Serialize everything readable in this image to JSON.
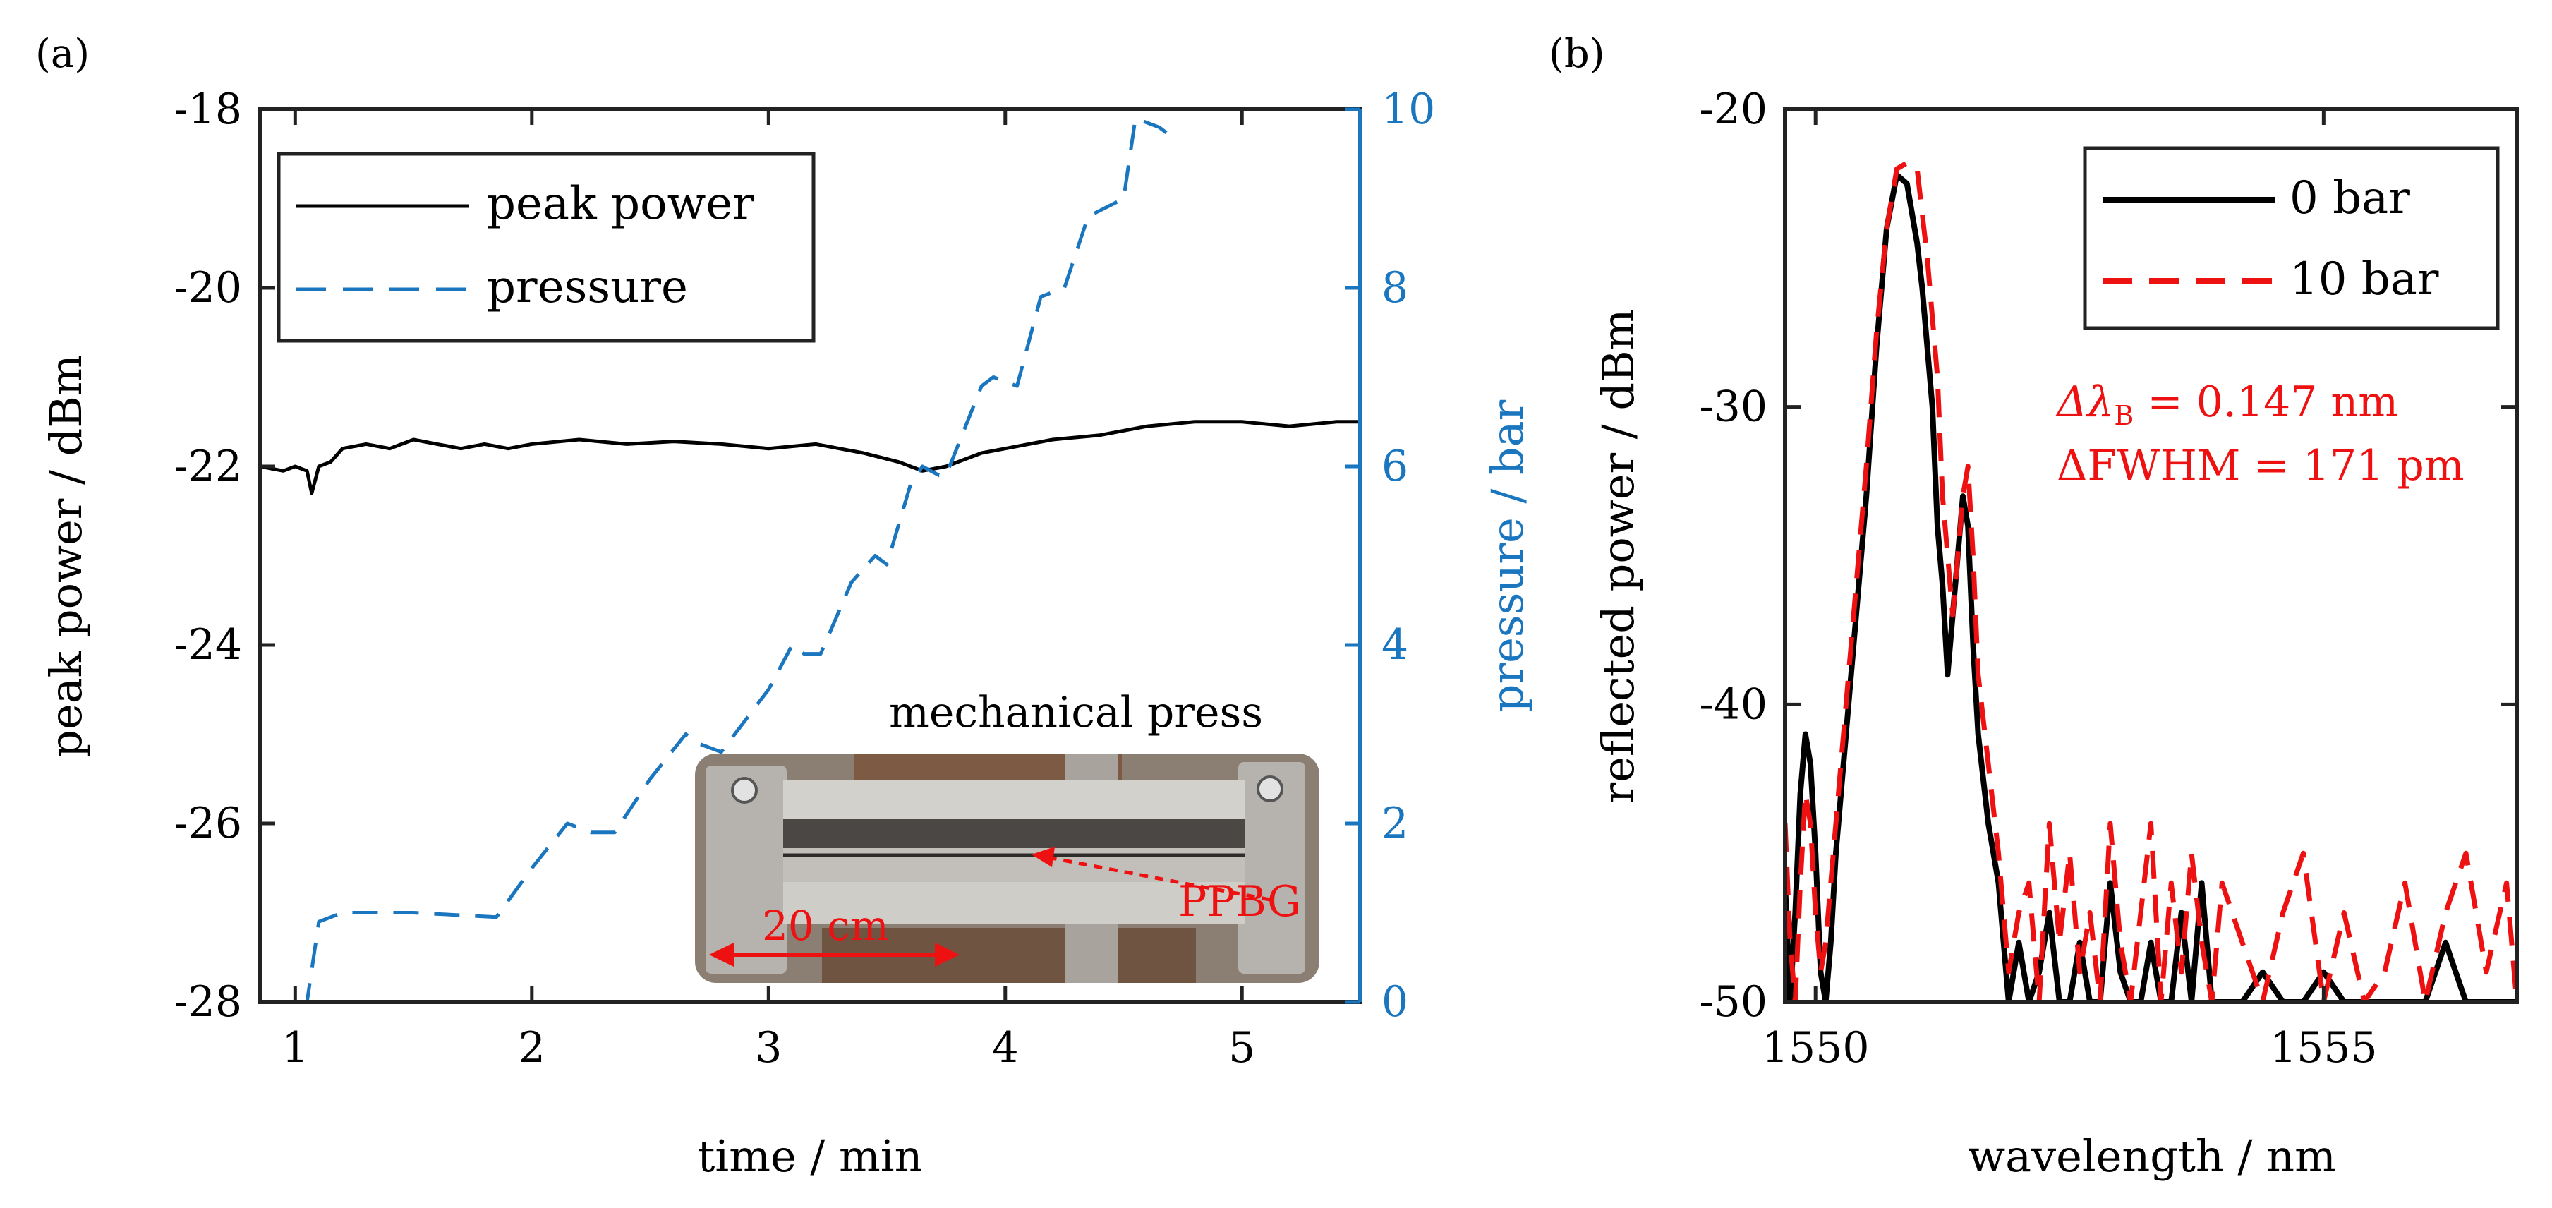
{
  "colors": {
    "black": "#000000",
    "blue": "#1a76bf",
    "red": "#ee1111",
    "axis": "#222222"
  },
  "chart_data": [
    {
      "panel_label": "(a)",
      "type": "line",
      "xlabel": "time / min",
      "ylabel": "peak power / dBm",
      "y2label": "pressure / bar",
      "xlim": [
        0.85,
        5.5
      ],
      "ylim": [
        -28,
        -18
      ],
      "y2lim": [
        0,
        10
      ],
      "xticks": [
        "1",
        "2",
        "3",
        "4",
        "5"
      ],
      "yticks": [
        "-18",
        "-20",
        "-22",
        "-24",
        "-26",
        "-28"
      ],
      "y2ticks": [
        "0",
        "2",
        "4",
        "6",
        "8",
        "10"
      ],
      "legend_location": "top-left",
      "inset_caption": "mechanical press",
      "inset_annotations": [
        "PPBG",
        "20 cm"
      ],
      "series": [
        {
          "name": "peak power",
          "axis": "left",
          "style": "solid",
          "x": [
            0.85,
            0.95,
            1.0,
            1.05,
            1.07,
            1.1,
            1.15,
            1.2,
            1.3,
            1.4,
            1.5,
            1.6,
            1.7,
            1.8,
            1.9,
            2.0,
            2.2,
            2.4,
            2.6,
            2.8,
            3.0,
            3.2,
            3.4,
            3.55,
            3.65,
            3.75,
            3.9,
            4.0,
            4.2,
            4.4,
            4.6,
            4.8,
            5.0,
            5.2,
            5.4,
            5.5
          ],
          "values": [
            -22.0,
            -22.05,
            -22.0,
            -22.05,
            -22.3,
            -22.0,
            -21.95,
            -21.8,
            -21.75,
            -21.8,
            -21.7,
            -21.75,
            -21.8,
            -21.75,
            -21.8,
            -21.75,
            -21.7,
            -21.75,
            -21.72,
            -21.75,
            -21.8,
            -21.75,
            -21.85,
            -21.95,
            -22.05,
            -22.0,
            -21.85,
            -21.8,
            -21.7,
            -21.65,
            -21.55,
            -21.5,
            -21.5,
            -21.55,
            -21.5,
            -21.5
          ]
        },
        {
          "name": "pressure",
          "axis": "right",
          "style": "dashed",
          "x": [
            0.85,
            1.05,
            1.1,
            1.2,
            1.5,
            1.85,
            2.0,
            2.15,
            2.25,
            2.35,
            2.5,
            2.65,
            2.7,
            2.8,
            3.0,
            3.1,
            3.15,
            3.22,
            3.35,
            3.45,
            3.5,
            3.6,
            3.65,
            3.72,
            3.75,
            3.9,
            3.95,
            4.05,
            4.15,
            4.25,
            4.35,
            4.5,
            4.55,
            4.65,
            4.7
          ],
          "values": [
            0,
            0,
            0.9,
            1.0,
            1.0,
            0.95,
            1.5,
            2.0,
            1.9,
            1.9,
            2.5,
            3.0,
            2.9,
            2.8,
            3.5,
            4.0,
            3.9,
            3.9,
            4.7,
            5.0,
            4.9,
            5.8,
            6.0,
            5.9,
            5.9,
            6.9,
            7.0,
            6.9,
            7.9,
            8.0,
            8.8,
            9.0,
            9.9,
            9.8,
            9.7
          ]
        }
      ]
    },
    {
      "panel_label": "(b)",
      "type": "line",
      "xlabel": "wavelength / nm",
      "ylabel": "reflected power / dBm",
      "xlim": [
        1549.7,
        1556.9
      ],
      "ylim": [
        -50,
        -20
      ],
      "xticks": [
        "1550",
        "1555"
      ],
      "yticks": [
        "-20",
        "-30",
        "-40",
        "-50"
      ],
      "legend_location": "top-right",
      "annotations": [
        "Δλ",
        "B",
        " = 0.147 nm",
        "ΔFWHM = 171 pm"
      ],
      "series": [
        {
          "name": "0 bar",
          "style": "solid",
          "x": [
            1549.7,
            1549.75,
            1549.8,
            1549.85,
            1549.9,
            1549.95,
            1550.0,
            1550.05,
            1550.1,
            1550.15,
            1550.2,
            1550.3,
            1550.4,
            1550.5,
            1550.6,
            1550.7,
            1550.8,
            1550.9,
            1551.0,
            1551.05,
            1551.1,
            1551.15,
            1551.2,
            1551.25,
            1551.3,
            1551.35,
            1551.4,
            1551.45,
            1551.5,
            1551.55,
            1551.6,
            1551.7,
            1551.8,
            1551.9,
            1552.0,
            1552.1,
            1552.2,
            1552.3,
            1552.4,
            1552.5,
            1552.6,
            1552.7,
            1552.8,
            1552.9,
            1553.0,
            1553.1,
            1553.2,
            1553.3,
            1553.4,
            1553.5,
            1553.6,
            1553.7,
            1553.8,
            1553.9,
            1554.0,
            1554.2,
            1554.4,
            1554.6,
            1554.8,
            1555.0,
            1555.2,
            1555.4,
            1555.6,
            1555.8,
            1556.0,
            1556.2,
            1556.4,
            1556.6,
            1556.8,
            1556.9
          ],
          "values": [
            -46,
            -50,
            -47,
            -43,
            -41,
            -42,
            -45,
            -49,
            -50,
            -48,
            -45,
            -41,
            -37,
            -33,
            -28,
            -24,
            -22.2,
            -22.5,
            -24.5,
            -26,
            -28,
            -30,
            -34,
            -36,
            -39,
            -37,
            -35,
            -33,
            -34,
            -38,
            -41,
            -44,
            -46,
            -50,
            -48,
            -50,
            -49,
            -47,
            -50,
            -50,
            -48,
            -50,
            -50,
            -46,
            -49,
            -50,
            -50,
            -48,
            -50,
            -50,
            -47,
            -50,
            -46,
            -50,
            -50,
            -50,
            -49,
            -50,
            -50,
            -49,
            -50,
            -50,
            -50,
            -50,
            -50,
            -48,
            -50,
            -50,
            -50,
            -50
          ]
        },
        {
          "name": "10 bar",
          "style": "dashed",
          "x": [
            1549.7,
            1549.75,
            1549.8,
            1549.85,
            1549.9,
            1549.95,
            1550.0,
            1550.05,
            1550.1,
            1550.15,
            1550.2,
            1550.3,
            1550.4,
            1550.5,
            1550.6,
            1550.7,
            1550.8,
            1550.9,
            1551.0,
            1551.05,
            1551.1,
            1551.15,
            1551.2,
            1551.25,
            1551.3,
            1551.35,
            1551.4,
            1551.45,
            1551.5,
            1551.55,
            1551.6,
            1551.7,
            1551.8,
            1551.9,
            1552.0,
            1552.1,
            1552.2,
            1552.3,
            1552.4,
            1552.5,
            1552.6,
            1552.7,
            1552.8,
            1552.9,
            1553.0,
            1553.1,
            1553.2,
            1553.3,
            1553.4,
            1553.5,
            1553.6,
            1553.7,
            1553.8,
            1553.9,
            1554.0,
            1554.2,
            1554.4,
            1554.6,
            1554.8,
            1555.0,
            1555.2,
            1555.4,
            1555.6,
            1555.8,
            1556.0,
            1556.2,
            1556.4,
            1556.6,
            1556.8,
            1556.9
          ],
          "values": [
            -44,
            -48,
            -50,
            -46,
            -43,
            -44,
            -47,
            -49,
            -48,
            -46,
            -44,
            -40,
            -36,
            -32,
            -27.5,
            -24,
            -22,
            -21.8,
            -22,
            -23.5,
            -25,
            -27,
            -29,
            -33,
            -35,
            -37,
            -35,
            -33,
            -32,
            -35,
            -39,
            -42,
            -45,
            -49,
            -47,
            -46,
            -50,
            -44,
            -48,
            -45,
            -49,
            -47,
            -50,
            -44,
            -48,
            -50,
            -47,
            -44,
            -50,
            -46,
            -49,
            -45,
            -48,
            -50,
            -46,
            -48,
            -50,
            -47,
            -45,
            -50,
            -47,
            -50,
            -49,
            -46,
            -50,
            -47,
            -45,
            -49,
            -46,
            -50
          ]
        }
      ]
    }
  ]
}
